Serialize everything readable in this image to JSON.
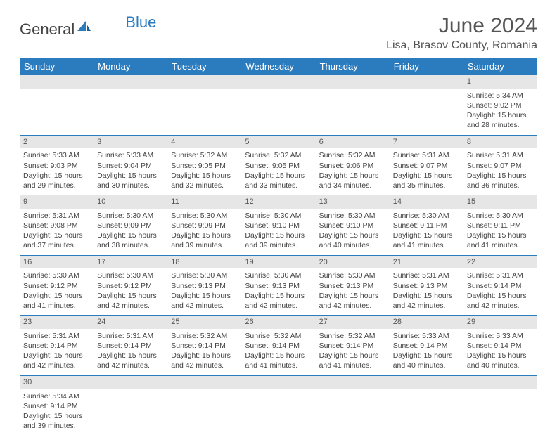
{
  "brand": {
    "part1": "General",
    "part2": "Blue"
  },
  "title": "June 2024",
  "location": "Lisa, Brasov County, Romania",
  "colors": {
    "header_bg": "#2b7bbf",
    "header_fg": "#ffffff",
    "daynum_bg": "#e6e6e6",
    "row_border": "#2b7bbf",
    "text": "#444444",
    "title_color": "#555555"
  },
  "weekdays": [
    "Sunday",
    "Monday",
    "Tuesday",
    "Wednesday",
    "Thursday",
    "Friday",
    "Saturday"
  ],
  "weeks": [
    [
      {
        "n": "",
        "sr": "",
        "ss": "",
        "dl": ""
      },
      {
        "n": "",
        "sr": "",
        "ss": "",
        "dl": ""
      },
      {
        "n": "",
        "sr": "",
        "ss": "",
        "dl": ""
      },
      {
        "n": "",
        "sr": "",
        "ss": "",
        "dl": ""
      },
      {
        "n": "",
        "sr": "",
        "ss": "",
        "dl": ""
      },
      {
        "n": "",
        "sr": "",
        "ss": "",
        "dl": ""
      },
      {
        "n": "1",
        "sr": "Sunrise: 5:34 AM",
        "ss": "Sunset: 9:02 PM",
        "dl": "Daylight: 15 hours and 28 minutes."
      }
    ],
    [
      {
        "n": "2",
        "sr": "Sunrise: 5:33 AM",
        "ss": "Sunset: 9:03 PM",
        "dl": "Daylight: 15 hours and 29 minutes."
      },
      {
        "n": "3",
        "sr": "Sunrise: 5:33 AM",
        "ss": "Sunset: 9:04 PM",
        "dl": "Daylight: 15 hours and 30 minutes."
      },
      {
        "n": "4",
        "sr": "Sunrise: 5:32 AM",
        "ss": "Sunset: 9:05 PM",
        "dl": "Daylight: 15 hours and 32 minutes."
      },
      {
        "n": "5",
        "sr": "Sunrise: 5:32 AM",
        "ss": "Sunset: 9:05 PM",
        "dl": "Daylight: 15 hours and 33 minutes."
      },
      {
        "n": "6",
        "sr": "Sunrise: 5:32 AM",
        "ss": "Sunset: 9:06 PM",
        "dl": "Daylight: 15 hours and 34 minutes."
      },
      {
        "n": "7",
        "sr": "Sunrise: 5:31 AM",
        "ss": "Sunset: 9:07 PM",
        "dl": "Daylight: 15 hours and 35 minutes."
      },
      {
        "n": "8",
        "sr": "Sunrise: 5:31 AM",
        "ss": "Sunset: 9:07 PM",
        "dl": "Daylight: 15 hours and 36 minutes."
      }
    ],
    [
      {
        "n": "9",
        "sr": "Sunrise: 5:31 AM",
        "ss": "Sunset: 9:08 PM",
        "dl": "Daylight: 15 hours and 37 minutes."
      },
      {
        "n": "10",
        "sr": "Sunrise: 5:30 AM",
        "ss": "Sunset: 9:09 PM",
        "dl": "Daylight: 15 hours and 38 minutes."
      },
      {
        "n": "11",
        "sr": "Sunrise: 5:30 AM",
        "ss": "Sunset: 9:09 PM",
        "dl": "Daylight: 15 hours and 39 minutes."
      },
      {
        "n": "12",
        "sr": "Sunrise: 5:30 AM",
        "ss": "Sunset: 9:10 PM",
        "dl": "Daylight: 15 hours and 39 minutes."
      },
      {
        "n": "13",
        "sr": "Sunrise: 5:30 AM",
        "ss": "Sunset: 9:10 PM",
        "dl": "Daylight: 15 hours and 40 minutes."
      },
      {
        "n": "14",
        "sr": "Sunrise: 5:30 AM",
        "ss": "Sunset: 9:11 PM",
        "dl": "Daylight: 15 hours and 41 minutes."
      },
      {
        "n": "15",
        "sr": "Sunrise: 5:30 AM",
        "ss": "Sunset: 9:11 PM",
        "dl": "Daylight: 15 hours and 41 minutes."
      }
    ],
    [
      {
        "n": "16",
        "sr": "Sunrise: 5:30 AM",
        "ss": "Sunset: 9:12 PM",
        "dl": "Daylight: 15 hours and 41 minutes."
      },
      {
        "n": "17",
        "sr": "Sunrise: 5:30 AM",
        "ss": "Sunset: 9:12 PM",
        "dl": "Daylight: 15 hours and 42 minutes."
      },
      {
        "n": "18",
        "sr": "Sunrise: 5:30 AM",
        "ss": "Sunset: 9:13 PM",
        "dl": "Daylight: 15 hours and 42 minutes."
      },
      {
        "n": "19",
        "sr": "Sunrise: 5:30 AM",
        "ss": "Sunset: 9:13 PM",
        "dl": "Daylight: 15 hours and 42 minutes."
      },
      {
        "n": "20",
        "sr": "Sunrise: 5:30 AM",
        "ss": "Sunset: 9:13 PM",
        "dl": "Daylight: 15 hours and 42 minutes."
      },
      {
        "n": "21",
        "sr": "Sunrise: 5:31 AM",
        "ss": "Sunset: 9:13 PM",
        "dl": "Daylight: 15 hours and 42 minutes."
      },
      {
        "n": "22",
        "sr": "Sunrise: 5:31 AM",
        "ss": "Sunset: 9:14 PM",
        "dl": "Daylight: 15 hours and 42 minutes."
      }
    ],
    [
      {
        "n": "23",
        "sr": "Sunrise: 5:31 AM",
        "ss": "Sunset: 9:14 PM",
        "dl": "Daylight: 15 hours and 42 minutes."
      },
      {
        "n": "24",
        "sr": "Sunrise: 5:31 AM",
        "ss": "Sunset: 9:14 PM",
        "dl": "Daylight: 15 hours and 42 minutes."
      },
      {
        "n": "25",
        "sr": "Sunrise: 5:32 AM",
        "ss": "Sunset: 9:14 PM",
        "dl": "Daylight: 15 hours and 42 minutes."
      },
      {
        "n": "26",
        "sr": "Sunrise: 5:32 AM",
        "ss": "Sunset: 9:14 PM",
        "dl": "Daylight: 15 hours and 41 minutes."
      },
      {
        "n": "27",
        "sr": "Sunrise: 5:32 AM",
        "ss": "Sunset: 9:14 PM",
        "dl": "Daylight: 15 hours and 41 minutes."
      },
      {
        "n": "28",
        "sr": "Sunrise: 5:33 AM",
        "ss": "Sunset: 9:14 PM",
        "dl": "Daylight: 15 hours and 40 minutes."
      },
      {
        "n": "29",
        "sr": "Sunrise: 5:33 AM",
        "ss": "Sunset: 9:14 PM",
        "dl": "Daylight: 15 hours and 40 minutes."
      }
    ],
    [
      {
        "n": "30",
        "sr": "Sunrise: 5:34 AM",
        "ss": "Sunset: 9:14 PM",
        "dl": "Daylight: 15 hours and 39 minutes."
      },
      {
        "n": "",
        "sr": "",
        "ss": "",
        "dl": ""
      },
      {
        "n": "",
        "sr": "",
        "ss": "",
        "dl": ""
      },
      {
        "n": "",
        "sr": "",
        "ss": "",
        "dl": ""
      },
      {
        "n": "",
        "sr": "",
        "ss": "",
        "dl": ""
      },
      {
        "n": "",
        "sr": "",
        "ss": "",
        "dl": ""
      },
      {
        "n": "",
        "sr": "",
        "ss": "",
        "dl": ""
      }
    ]
  ]
}
